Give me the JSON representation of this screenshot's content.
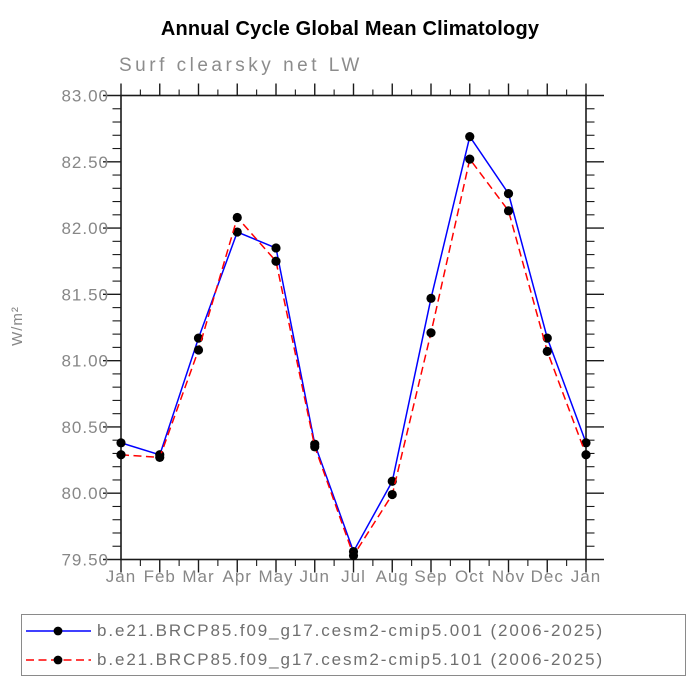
{
  "header": {
    "title": "Annual Cycle Global Mean Climatology",
    "subtitle": "Surf clearsky net LW"
  },
  "chart_data": {
    "type": "line",
    "title": "Annual Cycle Global Mean Climatology",
    "subtitle": "Surf clearsky net LW",
    "ylabel": "W/m²",
    "xlabel": "",
    "categories": [
      "Jan",
      "Feb",
      "Mar",
      "Apr",
      "May",
      "Jun",
      "Jul",
      "Aug",
      "Sep",
      "Oct",
      "Nov",
      "Dec",
      "Jan"
    ],
    "ylim": [
      79.5,
      83.0
    ],
    "ytick_major_interval": 0.5,
    "ytick_minor_interval": 0.1,
    "ytick_labels": [
      "83.00",
      "82.50",
      "82.00",
      "81.50",
      "81.00",
      "80.50",
      "80.00",
      "79.50"
    ],
    "grid": false,
    "legend_position": "bottom",
    "series": [
      {
        "name": "b.e21.BRCP85.f09_g17.cesm2-cmip5.001 (2006-2025)",
        "color": "#0000ff",
        "line_style": "solid",
        "marker": "dot",
        "marker_color": "#000000",
        "values": [
          80.38,
          80.29,
          81.17,
          81.97,
          81.85,
          80.37,
          79.56,
          80.09,
          81.47,
          82.69,
          82.26,
          81.17,
          80.38
        ]
      },
      {
        "name": "b.e21.BRCP85.f09_g17.cesm2-cmip5.101 (2006-2025)",
        "color": "#ff0000",
        "line_style": "dashed",
        "marker": "dot",
        "marker_color": "#000000",
        "values": [
          80.29,
          80.27,
          81.08,
          82.08,
          81.75,
          80.35,
          79.53,
          79.99,
          81.21,
          82.52,
          82.13,
          81.07,
          80.29
        ]
      }
    ],
    "colors": {
      "axis": "#1a1a1a",
      "tick_label": "#878787",
      "axis_label": "#878787"
    }
  }
}
